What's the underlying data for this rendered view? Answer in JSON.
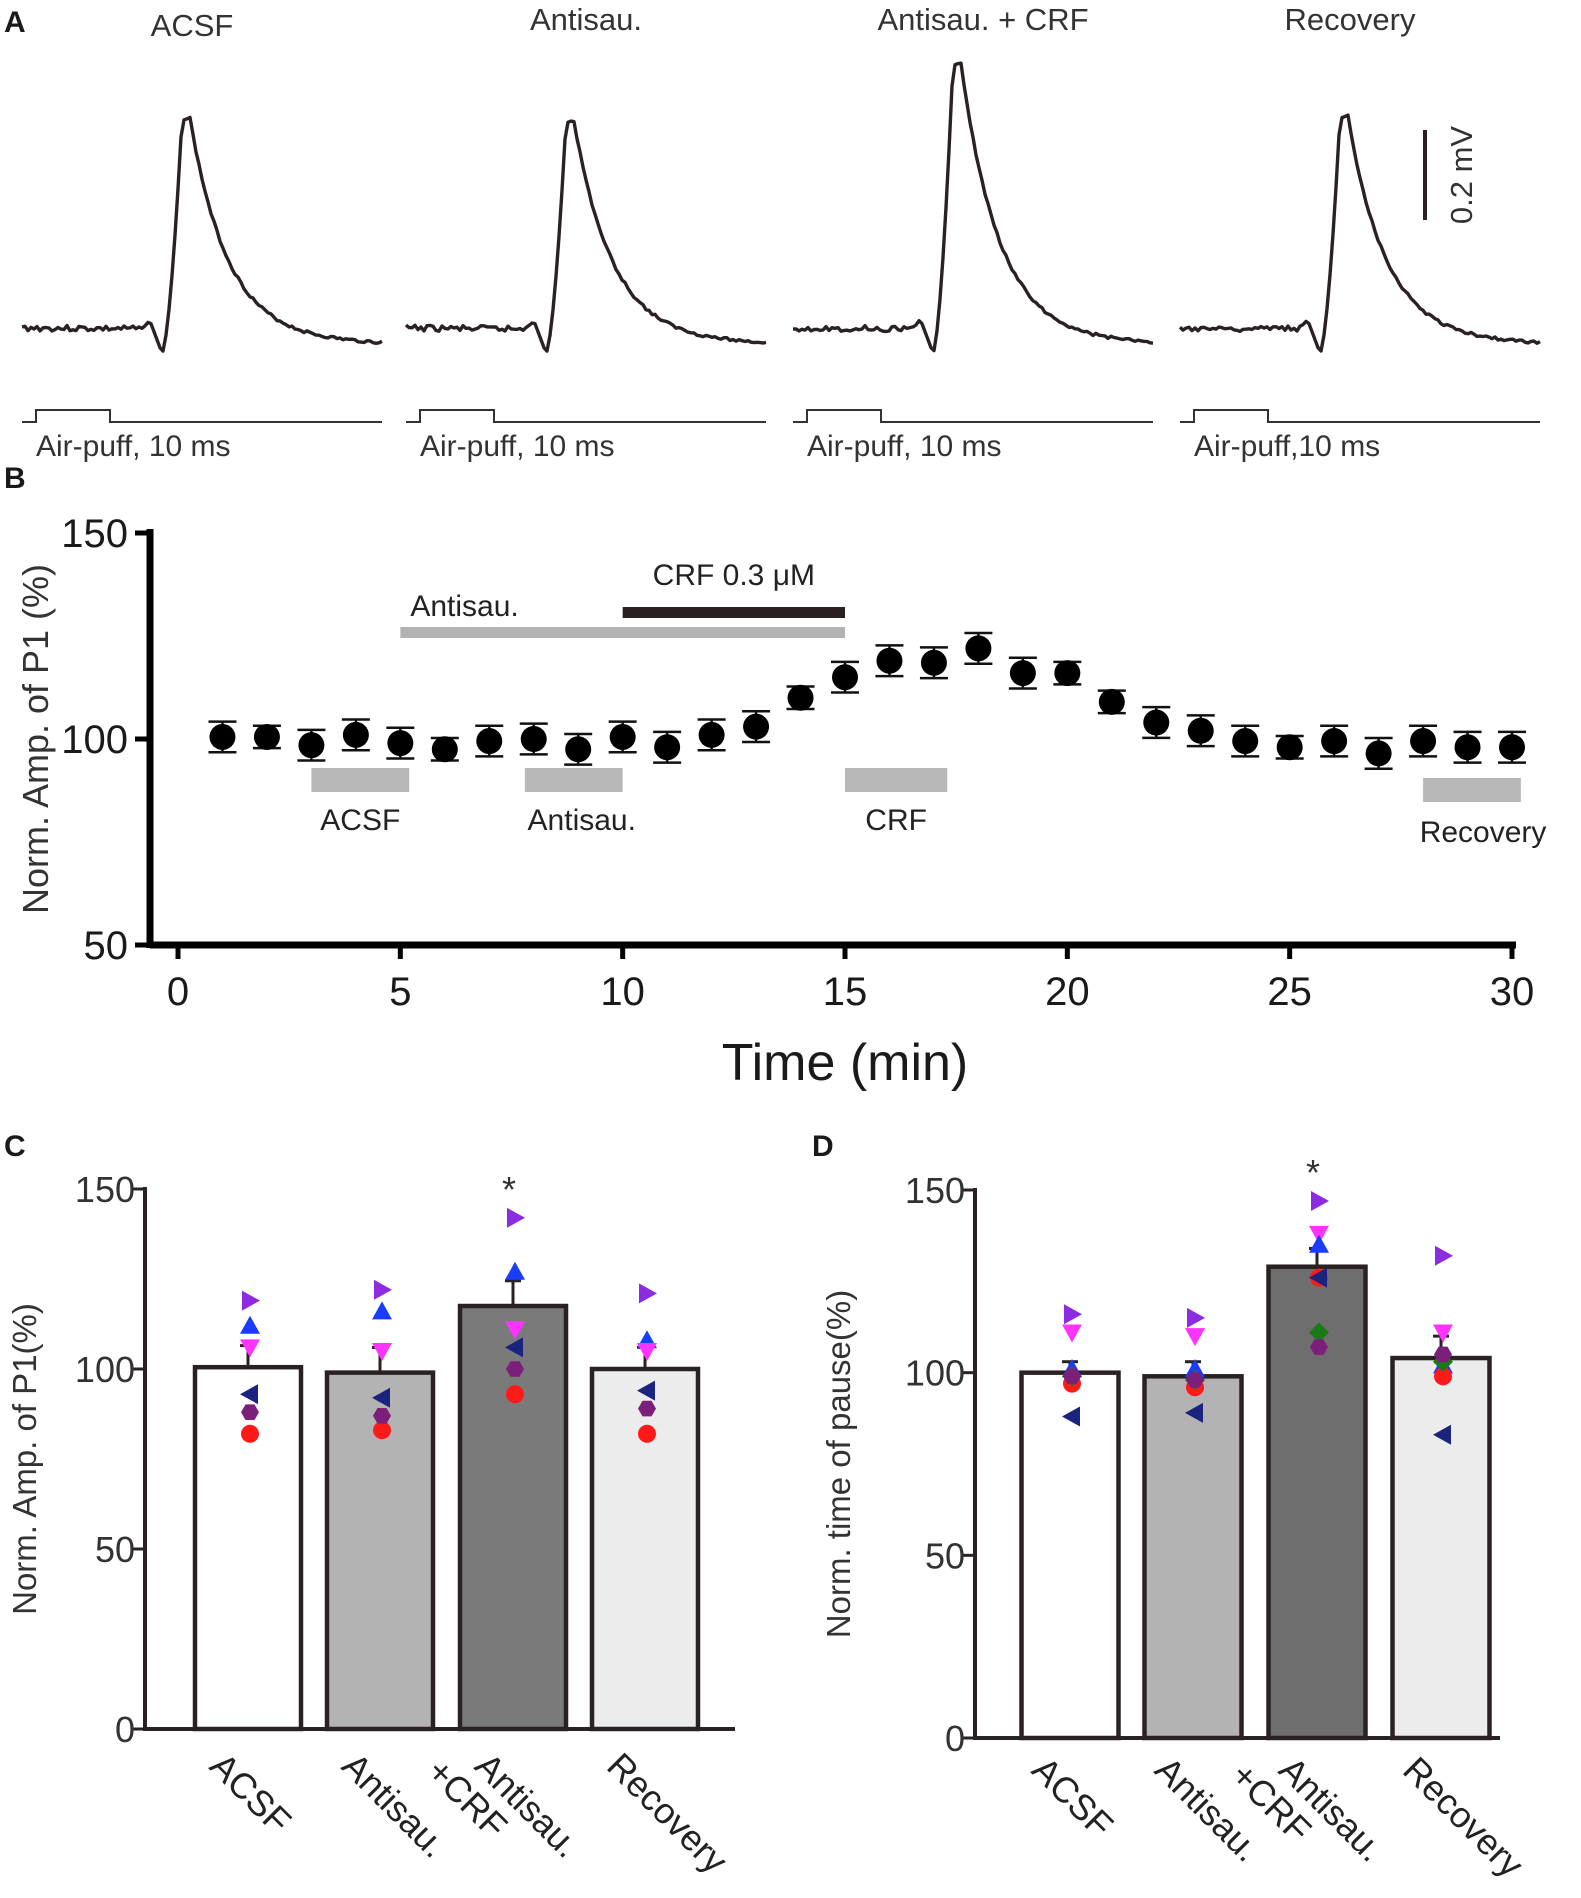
{
  "panel_a": {
    "letter": "A",
    "traces": [
      {
        "title": "ACSF",
        "stim_label": "Air-puff, 10 ms",
        "peak": 0.92
      },
      {
        "title": "Antisau.",
        "stim_label": "Air-puff, 10 ms",
        "peak": 0.91
      },
      {
        "title": "Antisau. + CRF",
        "stim_label": "Air-puff, 10 ms",
        "peak": 1.16
      },
      {
        "title": "Recovery",
        "stim_label": "Air-puff,10 ms",
        "peak": 0.93
      }
    ],
    "scale_bar_label": "0.2 mV"
  },
  "chart_data": [
    {
      "panel": "B",
      "type": "scatter",
      "title": "",
      "xlabel": "Time (min)",
      "ylabel": "Norm. Amp. of P1 (%)",
      "xlim": [
        0,
        30
      ],
      "ylim": [
        50,
        150
      ],
      "xticks": [
        "0",
        "5",
        "10",
        "15",
        "20",
        "25",
        "30"
      ],
      "yticks": [
        "50",
        "100",
        "150"
      ],
      "x": [
        1,
        2,
        3,
        4,
        5,
        6,
        7,
        8,
        9,
        10,
        11,
        12,
        13,
        14,
        15,
        16,
        17,
        18,
        19,
        20,
        21,
        22,
        23,
        24,
        25,
        26,
        27,
        28,
        29,
        30
      ],
      "y": [
        100.5,
        100.5,
        98.5,
        101,
        99,
        97.5,
        99.5,
        100,
        97.5,
        100.5,
        98,
        101,
        103,
        110,
        115,
        119,
        118.5,
        122,
        116,
        116,
        109,
        104,
        102,
        99.5,
        98,
        99.5,
        96.5,
        99.5,
        98,
        98
      ],
      "err": [
        3,
        2,
        3,
        3,
        3,
        2,
        3,
        3,
        3,
        3,
        3,
        3,
        3,
        2,
        3,
        3,
        3,
        3,
        3,
        2,
        2,
        3,
        3,
        3,
        2,
        3,
        3,
        3,
        3,
        3
      ],
      "treatment_bars": [
        {
          "label": "Antisau.",
          "start": 5,
          "end": 15
        },
        {
          "label": "CRF 0.3 μM",
          "start": 10,
          "end": 15
        }
      ],
      "epochs": [
        {
          "label": "ACSF",
          "start": 3,
          "end": 5.2
        },
        {
          "label": "Antisau.",
          "start": 7.8,
          "end": 10
        },
        {
          "label": "CRF",
          "start": 15,
          "end": 17.3
        },
        {
          "label": "Recovery",
          "start": 28,
          "end": 30.2
        }
      ]
    },
    {
      "panel": "C",
      "type": "bar",
      "title": "",
      "xlabel": "",
      "ylabel": "Norm. Amp. of P1(%)",
      "ylim": [
        0,
        150
      ],
      "yticks": [
        "0",
        "50",
        "100",
        "150"
      ],
      "categories": [
        "ACSF",
        "Antisau.",
        "Antisau.\n+CRF",
        "Recovery"
      ],
      "values": [
        100.5,
        99,
        117.5,
        100
      ],
      "errors": [
        6,
        7,
        7,
        6
      ],
      "bar_colors": [
        "#ffffff",
        "#b3b3b3",
        "#7a7a7a",
        "#ececec"
      ],
      "significance": [
        "",
        "",
        "*",
        ""
      ],
      "cells": [
        {
          "shape": "circle",
          "color": "#ff1a1a",
          "values": [
            82,
            83,
            93,
            82
          ]
        },
        {
          "shape": "triangle-right",
          "color": "#8b2be2",
          "values": [
            119,
            122,
            142,
            121
          ]
        },
        {
          "shape": "triangle-up",
          "color": "#1a3cff",
          "values": [
            112,
            116,
            127,
            108
          ]
        },
        {
          "shape": "triangle-down",
          "color": "#ff33ff",
          "values": [
            106,
            105,
            111,
            105
          ]
        },
        {
          "shape": "triangle-left",
          "color": "#1a237e",
          "values": [
            93,
            92,
            106,
            94
          ]
        },
        {
          "shape": "hexagon",
          "color": "#7b1f7b",
          "values": [
            88,
            87,
            100,
            89
          ]
        }
      ]
    },
    {
      "panel": "D",
      "type": "bar",
      "title": "",
      "xlabel": "",
      "ylabel": "Norm. time of pause(%)",
      "ylim": [
        0,
        150
      ],
      "yticks": [
        "0",
        "50",
        "100",
        "150"
      ],
      "categories": [
        "ACSF",
        "Antisau.",
        "Antisau.\n+CRF",
        "Recovery"
      ],
      "values": [
        100,
        99,
        129,
        104
      ],
      "errors": [
        3,
        4,
        5,
        6
      ],
      "bar_colors": [
        "#ffffff",
        "#b3b3b3",
        "#6e6e6e",
        "#ececec"
      ],
      "significance": [
        "",
        "",
        "*",
        ""
      ],
      "cells": [
        {
          "shape": "triangle-right",
          "color": "#8b2be2",
          "values": [
            116,
            115,
            147,
            132
          ]
        },
        {
          "shape": "triangle-down",
          "color": "#ff33ff",
          "values": [
            111,
            110,
            138,
            111
          ]
        },
        {
          "shape": "triangle-up",
          "color": "#1a3cff",
          "values": [
            101,
            101,
            135,
            102
          ]
        },
        {
          "shape": "circle",
          "color": "#ff1a1a",
          "values": [
            97,
            96,
            126,
            99
          ]
        },
        {
          "shape": "triangle-left",
          "color": "#1a237e",
          "values": [
            88,
            89,
            126,
            83
          ]
        },
        {
          "shape": "diamond",
          "color": "#1a7a1a",
          "values": [
            99,
            98,
            111,
            103
          ]
        },
        {
          "shape": "hexagon",
          "color": "#7b1f7b",
          "values": [
            99,
            98,
            107,
            105
          ]
        }
      ]
    }
  ]
}
